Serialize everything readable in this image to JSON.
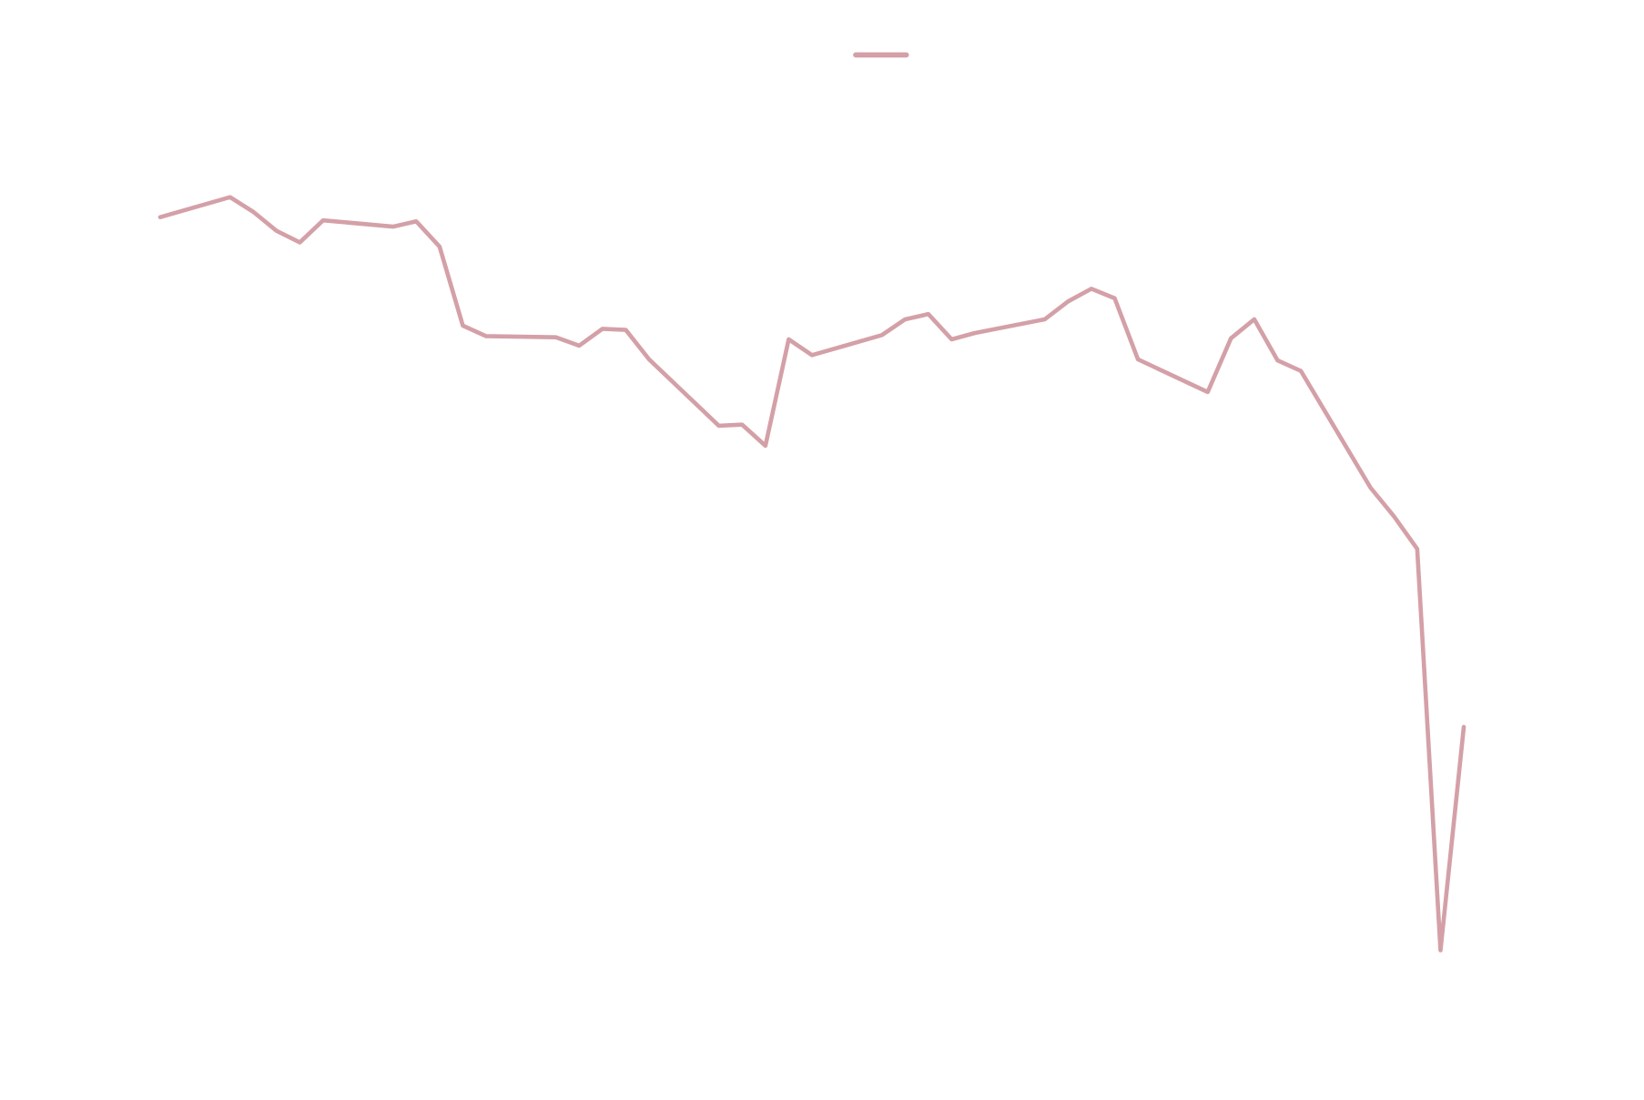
{
  "chart_data": {
    "type": "line",
    "x": [
      0,
      3,
      4,
      5,
      6,
      7,
      10,
      11,
      12,
      13,
      14,
      17,
      18,
      19,
      20,
      21,
      24,
      25,
      26,
      27,
      28,
      31,
      32,
      33,
      34,
      35,
      38,
      39,
      40,
      41,
      42,
      45,
      46,
      47,
      48,
      49,
      52,
      53,
      54,
      55,
      56
    ],
    "series": [
      {
        "color": "#d4a0a7",
        "values": [
          79.4,
          81.3,
          79.9,
          78.1,
          77.0,
          79.1,
          78.5,
          79.0,
          76.6,
          69.1,
          68.1,
          68.0,
          67.2,
          68.8,
          68.7,
          65.9,
          59.6,
          59.7,
          57.7,
          67.8,
          66.3,
          68.2,
          69.7,
          70.2,
          67.8,
          68.4,
          69.7,
          71.4,
          72.6,
          71.7,
          65.9,
          62.8,
          67.9,
          69.7,
          65.8,
          64.8,
          53.7,
          51.0,
          47.9,
          9.8,
          31.0
        ]
      }
    ],
    "xlim": [
      0,
      56
    ],
    "ylim": [
      0,
      100
    ],
    "legend": "top"
  }
}
